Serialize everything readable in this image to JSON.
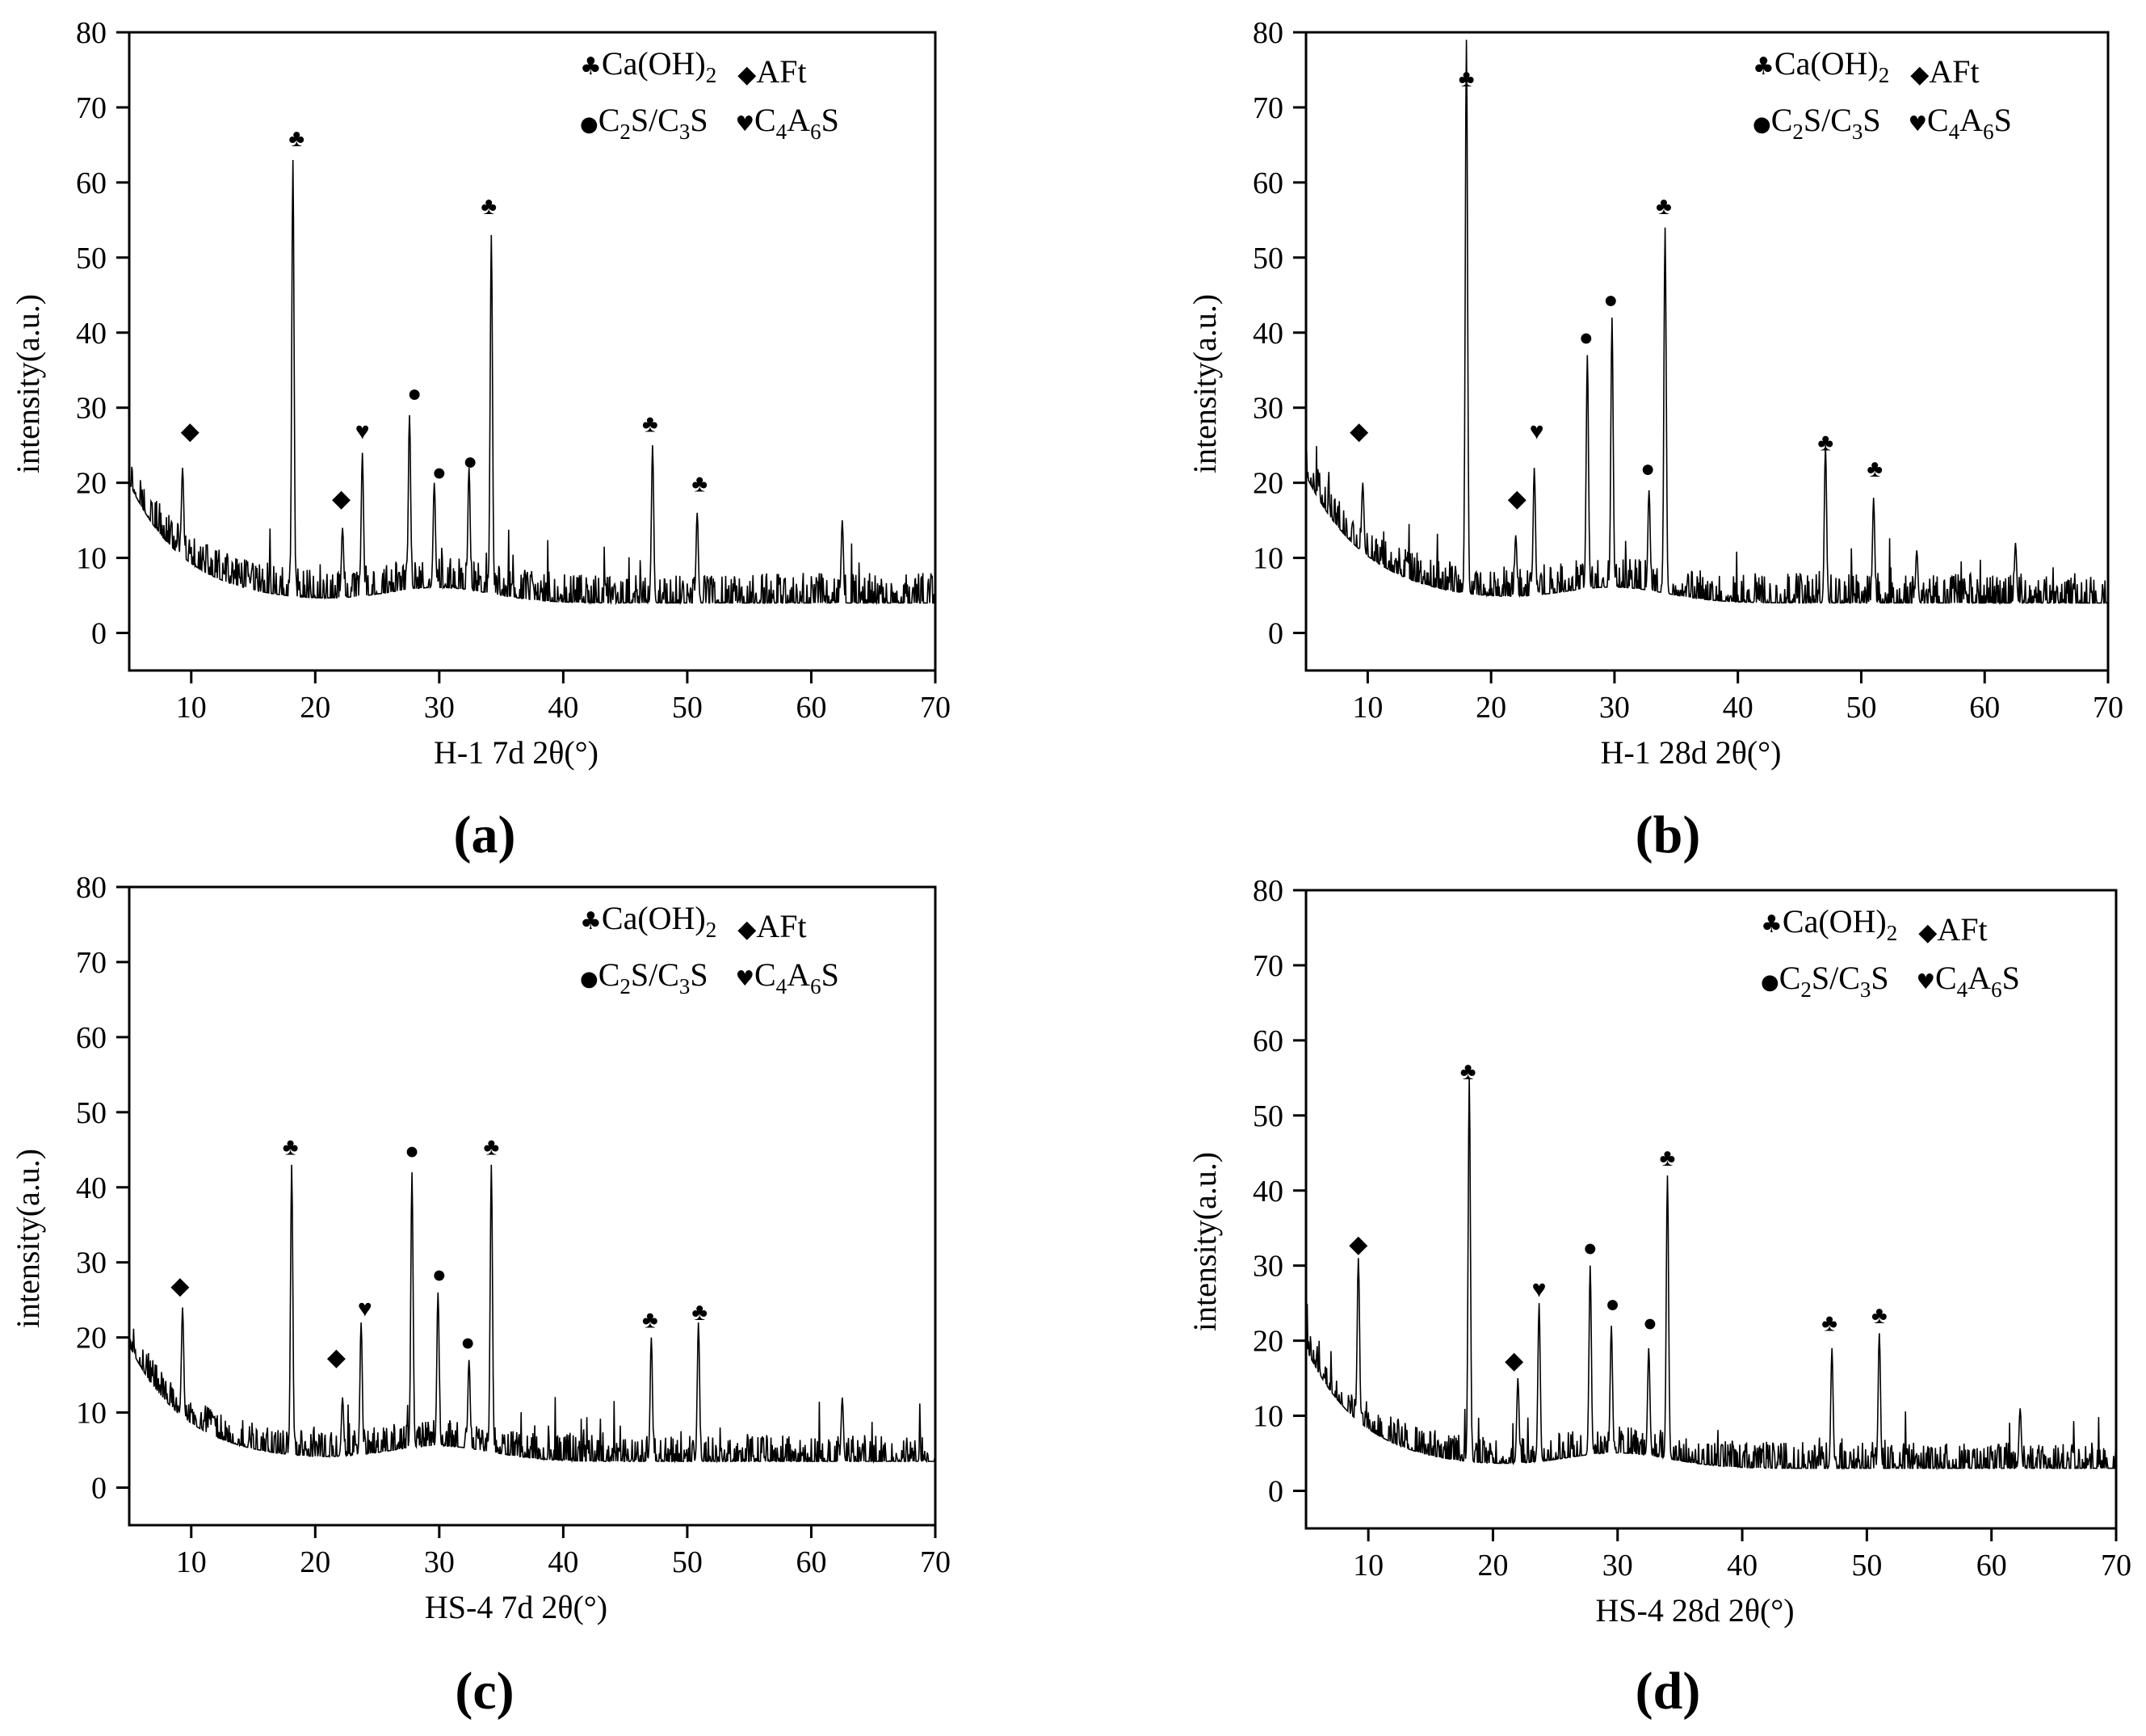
{
  "chart_data": [
    {
      "type": "line",
      "panel_label": "(a)",
      "xlabel": "H-1 7d  2θ(°)",
      "ylabel": "intensity(a.u.)",
      "xlim": [
        5,
        70
      ],
      "ylim": [
        -5,
        80
      ],
      "xticks": [
        10,
        20,
        30,
        40,
        50,
        60,
        70
      ],
      "yticks": [
        0,
        10,
        20,
        30,
        40,
        50,
        60,
        70,
        80
      ],
      "legend": {
        "row1": [
          {
            "symbol": "♣",
            "text": "Ca(OH)",
            "sub": "2"
          },
          {
            "symbol": "◆",
            "text": "AFt"
          }
        ],
        "row2": [
          {
            "symbol": "●",
            "parts": [
              "C",
              "2",
              "S/C",
              "3",
              "S"
            ]
          },
          {
            "symbol": "♥",
            "parts": [
              "C",
              "4",
              "A",
              "6",
              "S"
            ]
          }
        ]
      },
      "baseline": {
        "start": 20,
        "decay": 4.5,
        "end": 4,
        "noise": 4
      },
      "peaks": [
        [
          9.3,
          22
        ],
        [
          18.2,
          63
        ],
        [
          22.2,
          14
        ],
        [
          23.8,
          24
        ],
        [
          27.6,
          29
        ],
        [
          29.6,
          20
        ],
        [
          32.4,
          22
        ],
        [
          34.2,
          53
        ],
        [
          47.2,
          25
        ],
        [
          50.8,
          16
        ],
        [
          62.5,
          15
        ]
      ],
      "markers": [
        {
          "symbol": "♣",
          "x": 18.5,
          "y": 66
        },
        {
          "symbol": "♣",
          "x": 34.0,
          "y": 57
        },
        {
          "symbol": "♣",
          "x": 47.0,
          "y": 28
        },
        {
          "symbol": "♣",
          "x": 51.0,
          "y": 20
        },
        {
          "symbol": "◆",
          "x": 9.9,
          "y": 27
        },
        {
          "symbol": "◆",
          "x": 22.1,
          "y": 18
        },
        {
          "symbol": "♥",
          "x": 23.8,
          "y": 27
        },
        {
          "symbol": "●",
          "x": 28.0,
          "y": 32
        },
        {
          "symbol": "●",
          "x": 30.0,
          "y": 21.5
        },
        {
          "symbol": "●",
          "x": 32.5,
          "y": 23
        }
      ]
    },
    {
      "type": "line",
      "panel_label": "(b)",
      "xlabel": "H-1 28d  2θ(°)",
      "ylabel": "intensity(a.u.)",
      "xlim": [
        5,
        70
      ],
      "ylim": [
        -5,
        80
      ],
      "xticks": [
        10,
        20,
        30,
        40,
        50,
        60,
        70
      ],
      "yticks": [
        0,
        10,
        20,
        30,
        40,
        50,
        60,
        70,
        80
      ],
      "legend": {
        "row1": [
          {
            "symbol": "♣",
            "text": "Ca(OH)",
            "sub": "2"
          },
          {
            "symbol": "◆",
            "text": "AFt"
          }
        ],
        "row2": [
          {
            "symbol": "●",
            "parts": [
              "C",
              "2",
              "S/C",
              "3",
              "S"
            ]
          },
          {
            "symbol": "♥",
            "parts": [
              "C",
              "4",
              "A",
              "6",
              "S"
            ]
          }
        ]
      },
      "baseline": {
        "start": 21,
        "decay": 5,
        "end": 4,
        "noise": 4
      },
      "peaks": [
        [
          9.6,
          20
        ],
        [
          18.0,
          79
        ],
        [
          22.0,
          13
        ],
        [
          23.5,
          22
        ],
        [
          27.8,
          37
        ],
        [
          29.8,
          42
        ],
        [
          32.8,
          19
        ],
        [
          34.1,
          54
        ],
        [
          47.1,
          25
        ],
        [
          51.0,
          18
        ],
        [
          54.5,
          11
        ],
        [
          62.5,
          12
        ]
      ],
      "markers": [
        {
          "symbol": "♣",
          "x": 18.0,
          "y": 74
        },
        {
          "symbol": "♣",
          "x": 34.0,
          "y": 57
        },
        {
          "symbol": "♣",
          "x": 47.1,
          "y": 25.5
        },
        {
          "symbol": "♣",
          "x": 51.1,
          "y": 22
        },
        {
          "symbol": "◆",
          "x": 9.3,
          "y": 27
        },
        {
          "symbol": "◆",
          "x": 22.1,
          "y": 18
        },
        {
          "symbol": "♥",
          "x": 23.7,
          "y": 27
        },
        {
          "symbol": "●",
          "x": 27.7,
          "y": 39.5
        },
        {
          "symbol": "●",
          "x": 29.7,
          "y": 44.5
        },
        {
          "symbol": "●",
          "x": 32.7,
          "y": 22
        }
      ]
    },
    {
      "type": "line",
      "panel_label": "(c)",
      "xlabel": "HS-4 7d  2θ(°)",
      "ylabel": "intensity(a.u.)",
      "xlim": [
        5,
        70
      ],
      "ylim": [
        -5,
        80
      ],
      "xticks": [
        10,
        20,
        30,
        40,
        50,
        60,
        70
      ],
      "yticks": [
        0,
        10,
        20,
        30,
        40,
        50,
        60,
        70,
        80
      ],
      "legend": {
        "row1": [
          {
            "symbol": "♣",
            "text": "Ca(OH)",
            "sub": "2"
          },
          {
            "symbol": "◆",
            "text": "AFt"
          }
        ],
        "row2": [
          {
            "symbol": "●",
            "parts": [
              "C",
              "2",
              "S/C",
              "3",
              "S"
            ]
          },
          {
            "symbol": "♥",
            "parts": [
              "C",
              "4",
              "A",
              "6",
              "S"
            ]
          }
        ]
      },
      "baseline": {
        "start": 19,
        "decay": 4.5,
        "end": 3.5,
        "noise": 3.5
      },
      "peaks": [
        [
          9.3,
          24
        ],
        [
          18.1,
          43
        ],
        [
          22.2,
          12
        ],
        [
          23.7,
          22
        ],
        [
          27.8,
          42
        ],
        [
          29.9,
          26
        ],
        [
          32.4,
          17
        ],
        [
          34.2,
          43
        ],
        [
          47.1,
          20
        ],
        [
          50.9,
          22
        ],
        [
          62.5,
          12
        ]
      ],
      "markers": [
        {
          "symbol": "♣",
          "x": 18.0,
          "y": 45.5
        },
        {
          "symbol": "♣",
          "x": 34.2,
          "y": 45.5
        },
        {
          "symbol": "♣",
          "x": 47.0,
          "y": 22.5
        },
        {
          "symbol": "♣",
          "x": 51.0,
          "y": 23.5
        },
        {
          "symbol": "◆",
          "x": 9.1,
          "y": 27
        },
        {
          "symbol": "◆",
          "x": 21.7,
          "y": 17.5
        },
        {
          "symbol": "♥",
          "x": 24.0,
          "y": 24
        },
        {
          "symbol": "●",
          "x": 27.8,
          "y": 45
        },
        {
          "symbol": "●",
          "x": 30.0,
          "y": 28.5
        },
        {
          "symbol": "●",
          "x": 32.3,
          "y": 19.5
        }
      ]
    },
    {
      "type": "line",
      "panel_label": "(d)",
      "xlabel": "HS-4 28d  2θ(°)",
      "ylabel": "intensity(a.u.)",
      "xlim": [
        5,
        70
      ],
      "ylim": [
        -5,
        80
      ],
      "xticks": [
        10,
        20,
        30,
        40,
        50,
        60,
        70
      ],
      "yticks": [
        0,
        10,
        20,
        30,
        40,
        50,
        60,
        70,
        80
      ],
      "legend": {
        "row1": [
          {
            "symbol": "♣",
            "text": "Ca(OH)",
            "sub": "2"
          },
          {
            "symbol": "◆",
            "text": "AFt"
          }
        ],
        "row2": [
          {
            "symbol": "●",
            "parts": [
              "C",
              "2",
              "S/C",
              "3",
              "S"
            ]
          },
          {
            "symbol": "♥",
            "parts": [
              "C",
              "4",
              "A",
              "6",
              "S"
            ]
          }
        ]
      },
      "baseline": {
        "start": 19,
        "decay": 4.5,
        "end": 3,
        "noise": 3.5
      },
      "peaks": [
        [
          9.2,
          31
        ],
        [
          18.1,
          55
        ],
        [
          22.0,
          15
        ],
        [
          23.7,
          25
        ],
        [
          27.8,
          30
        ],
        [
          29.5,
          22
        ],
        [
          32.5,
          19
        ],
        [
          34.0,
          42
        ],
        [
          47.2,
          19
        ],
        [
          51.0,
          21
        ],
        [
          62.3,
          11
        ]
      ],
      "markers": [
        {
          "symbol": "♣",
          "x": 18.0,
          "y": 56
        },
        {
          "symbol": "♣",
          "x": 34.0,
          "y": 44.5
        },
        {
          "symbol": "♣",
          "x": 47.0,
          "y": 22.5
        },
        {
          "symbol": "♣",
          "x": 51.0,
          "y": 23.5
        },
        {
          "symbol": "◆",
          "x": 9.2,
          "y": 33
        },
        {
          "symbol": "◆",
          "x": 21.7,
          "y": 17.5
        },
        {
          "symbol": "♥",
          "x": 23.7,
          "y": 27
        },
        {
          "symbol": "●",
          "x": 27.8,
          "y": 32.5
        },
        {
          "symbol": "●",
          "x": 29.6,
          "y": 25
        },
        {
          "symbol": "●",
          "x": 32.6,
          "y": 22.5
        }
      ]
    }
  ]
}
